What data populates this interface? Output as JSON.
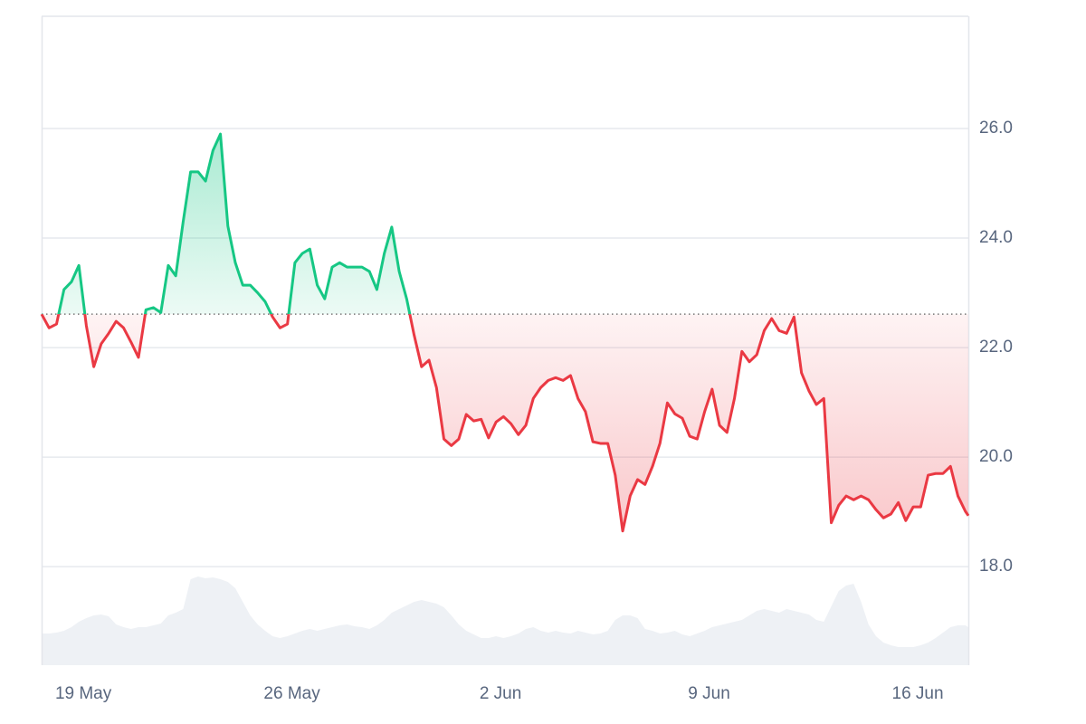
{
  "chart_data": {
    "type": "line",
    "x": [
      17.6,
      17.85,
      18.1,
      18.35,
      18.6,
      18.85,
      19.1,
      19.35,
      19.6,
      19.85,
      20.1,
      20.35,
      20.6,
      20.85,
      21.1,
      21.35,
      21.6,
      21.85,
      22.1,
      22.35,
      22.6,
      22.85,
      23.1,
      23.35,
      23.6,
      23.85,
      24.1,
      24.35,
      24.6,
      24.85,
      25.1,
      25.35,
      25.6,
      25.85,
      26.1,
      26.35,
      26.6,
      26.85,
      27.1,
      27.35,
      27.6,
      27.85,
      28.1,
      28.35,
      28.6,
      28.85,
      29.1,
      29.35,
      29.6,
      29.85,
      30.1,
      30.35,
      30.6,
      30.85,
      31.1,
      31.35,
      31.6,
      31.85,
      32.1,
      32.35,
      32.6,
      32.85,
      33.1,
      33.35,
      33.6,
      33.85,
      34.1,
      34.35,
      34.6,
      34.85,
      35.1,
      35.35,
      35.6,
      35.85,
      36.1,
      36.35,
      36.6,
      36.85,
      37.1,
      37.35,
      37.6,
      37.85,
      38.1,
      38.35,
      38.6,
      38.85,
      39.1,
      39.35,
      39.6,
      39.85,
      40.1,
      40.35,
      40.6,
      40.85,
      41.1,
      41.35,
      41.6,
      41.85,
      42.1,
      42.35,
      42.6,
      42.85,
      43.1,
      43.35,
      43.6,
      43.85,
      44.1,
      44.35,
      44.6,
      44.85,
      45.1,
      45.35,
      45.6,
      45.85,
      46.1,
      46.35,
      46.6,
      46.85,
      47.1,
      47.35,
      47.6,
      47.85,
      48.1,
      48.35,
      48.6,
      48.7
    ],
    "series": [
      {
        "color_up": "#16c784",
        "color_down": "#ea3943",
        "values": [
          22.61,
          22.36,
          22.43,
          23.06,
          23.2,
          23.5,
          22.4,
          21.65,
          22.07,
          22.26,
          22.48,
          22.36,
          22.1,
          21.82,
          22.69,
          22.73,
          22.64,
          23.5,
          23.31,
          24.3,
          25.21,
          25.21,
          25.04,
          25.6,
          25.9,
          24.22,
          23.55,
          23.14,
          23.14,
          23.0,
          22.84,
          22.56,
          22.36,
          22.43,
          23.55,
          23.72,
          23.8,
          23.14,
          22.89,
          23.47,
          23.55,
          23.47,
          23.47,
          23.47,
          23.39,
          23.06,
          23.72,
          24.2,
          23.39,
          22.89,
          22.23,
          21.65,
          21.77,
          21.27,
          20.33,
          20.21,
          20.33,
          20.78,
          20.66,
          20.69,
          20.35,
          20.64,
          20.74,
          20.61,
          20.41,
          20.58,
          21.07,
          21.27,
          21.4,
          21.45,
          21.4,
          21.49,
          21.07,
          20.83,
          20.28,
          20.25,
          20.25,
          19.67,
          18.65,
          19.29,
          19.59,
          19.5,
          19.83,
          20.25,
          20.99,
          20.79,
          20.71,
          20.38,
          20.33,
          20.83,
          21.24,
          20.58,
          20.45,
          21.07,
          21.93,
          21.74,
          21.87,
          22.31,
          22.53,
          22.31,
          22.26,
          22.56,
          21.54,
          21.21,
          20.96,
          21.07,
          18.8,
          19.12,
          19.29,
          19.22,
          19.29,
          19.22,
          19.04,
          18.89,
          18.96,
          19.17,
          18.84,
          19.09,
          19.09,
          19.67,
          19.7,
          19.7,
          19.83,
          19.29,
          19.01,
          18.93
        ]
      }
    ],
    "volume": {
      "color": "#eef1f5",
      "ylim": [
        0,
        100
      ],
      "values": [
        35,
        35,
        36,
        38,
        42,
        48,
        52,
        55,
        56,
        54,
        45,
        42,
        40,
        42,
        42,
        44,
        46,
        55,
        58,
        62,
        95,
        98,
        96,
        97,
        95,
        92,
        85,
        70,
        55,
        45,
        38,
        32,
        30,
        32,
        35,
        38,
        40,
        38,
        40,
        42,
        44,
        45,
        43,
        42,
        40,
        44,
        50,
        58,
        62,
        66,
        70,
        72,
        70,
        68,
        64,
        55,
        45,
        38,
        34,
        30,
        30,
        32,
        30,
        32,
        35,
        40,
        42,
        38,
        36,
        38,
        36,
        35,
        38,
        36,
        34,
        35,
        38,
        50,
        55,
        55,
        52,
        40,
        38,
        35,
        36,
        38,
        34,
        32,
        35,
        38,
        42,
        44,
        46,
        48,
        50,
        55,
        60,
        62,
        60,
        58,
        62,
        60,
        58,
        56,
        50,
        48,
        65,
        82,
        88,
        90,
        70,
        45,
        32,
        25,
        22,
        20,
        20,
        20,
        22,
        25,
        30,
        36,
        42,
        44,
        44,
        42
      ]
    },
    "xlim": [
      17.6,
      48.7
    ],
    "ylim": [
      16.2,
      28.05
    ],
    "xticks": [
      {
        "value": 19,
        "label": "19 May"
      },
      {
        "value": 26,
        "label": "26 May"
      },
      {
        "value": 33,
        "label": "2 Jun"
      },
      {
        "value": 40,
        "label": "9 Jun"
      },
      {
        "value": 47,
        "label": "16 Jun"
      }
    ],
    "yticks": [
      {
        "value": 18,
        "label": "18.0"
      },
      {
        "value": 20,
        "label": "20.0"
      },
      {
        "value": 22,
        "label": "22.0"
      },
      {
        "value": 24,
        "label": "24.0"
      },
      {
        "value": 26,
        "label": "26.0"
      }
    ],
    "grid": true
  }
}
